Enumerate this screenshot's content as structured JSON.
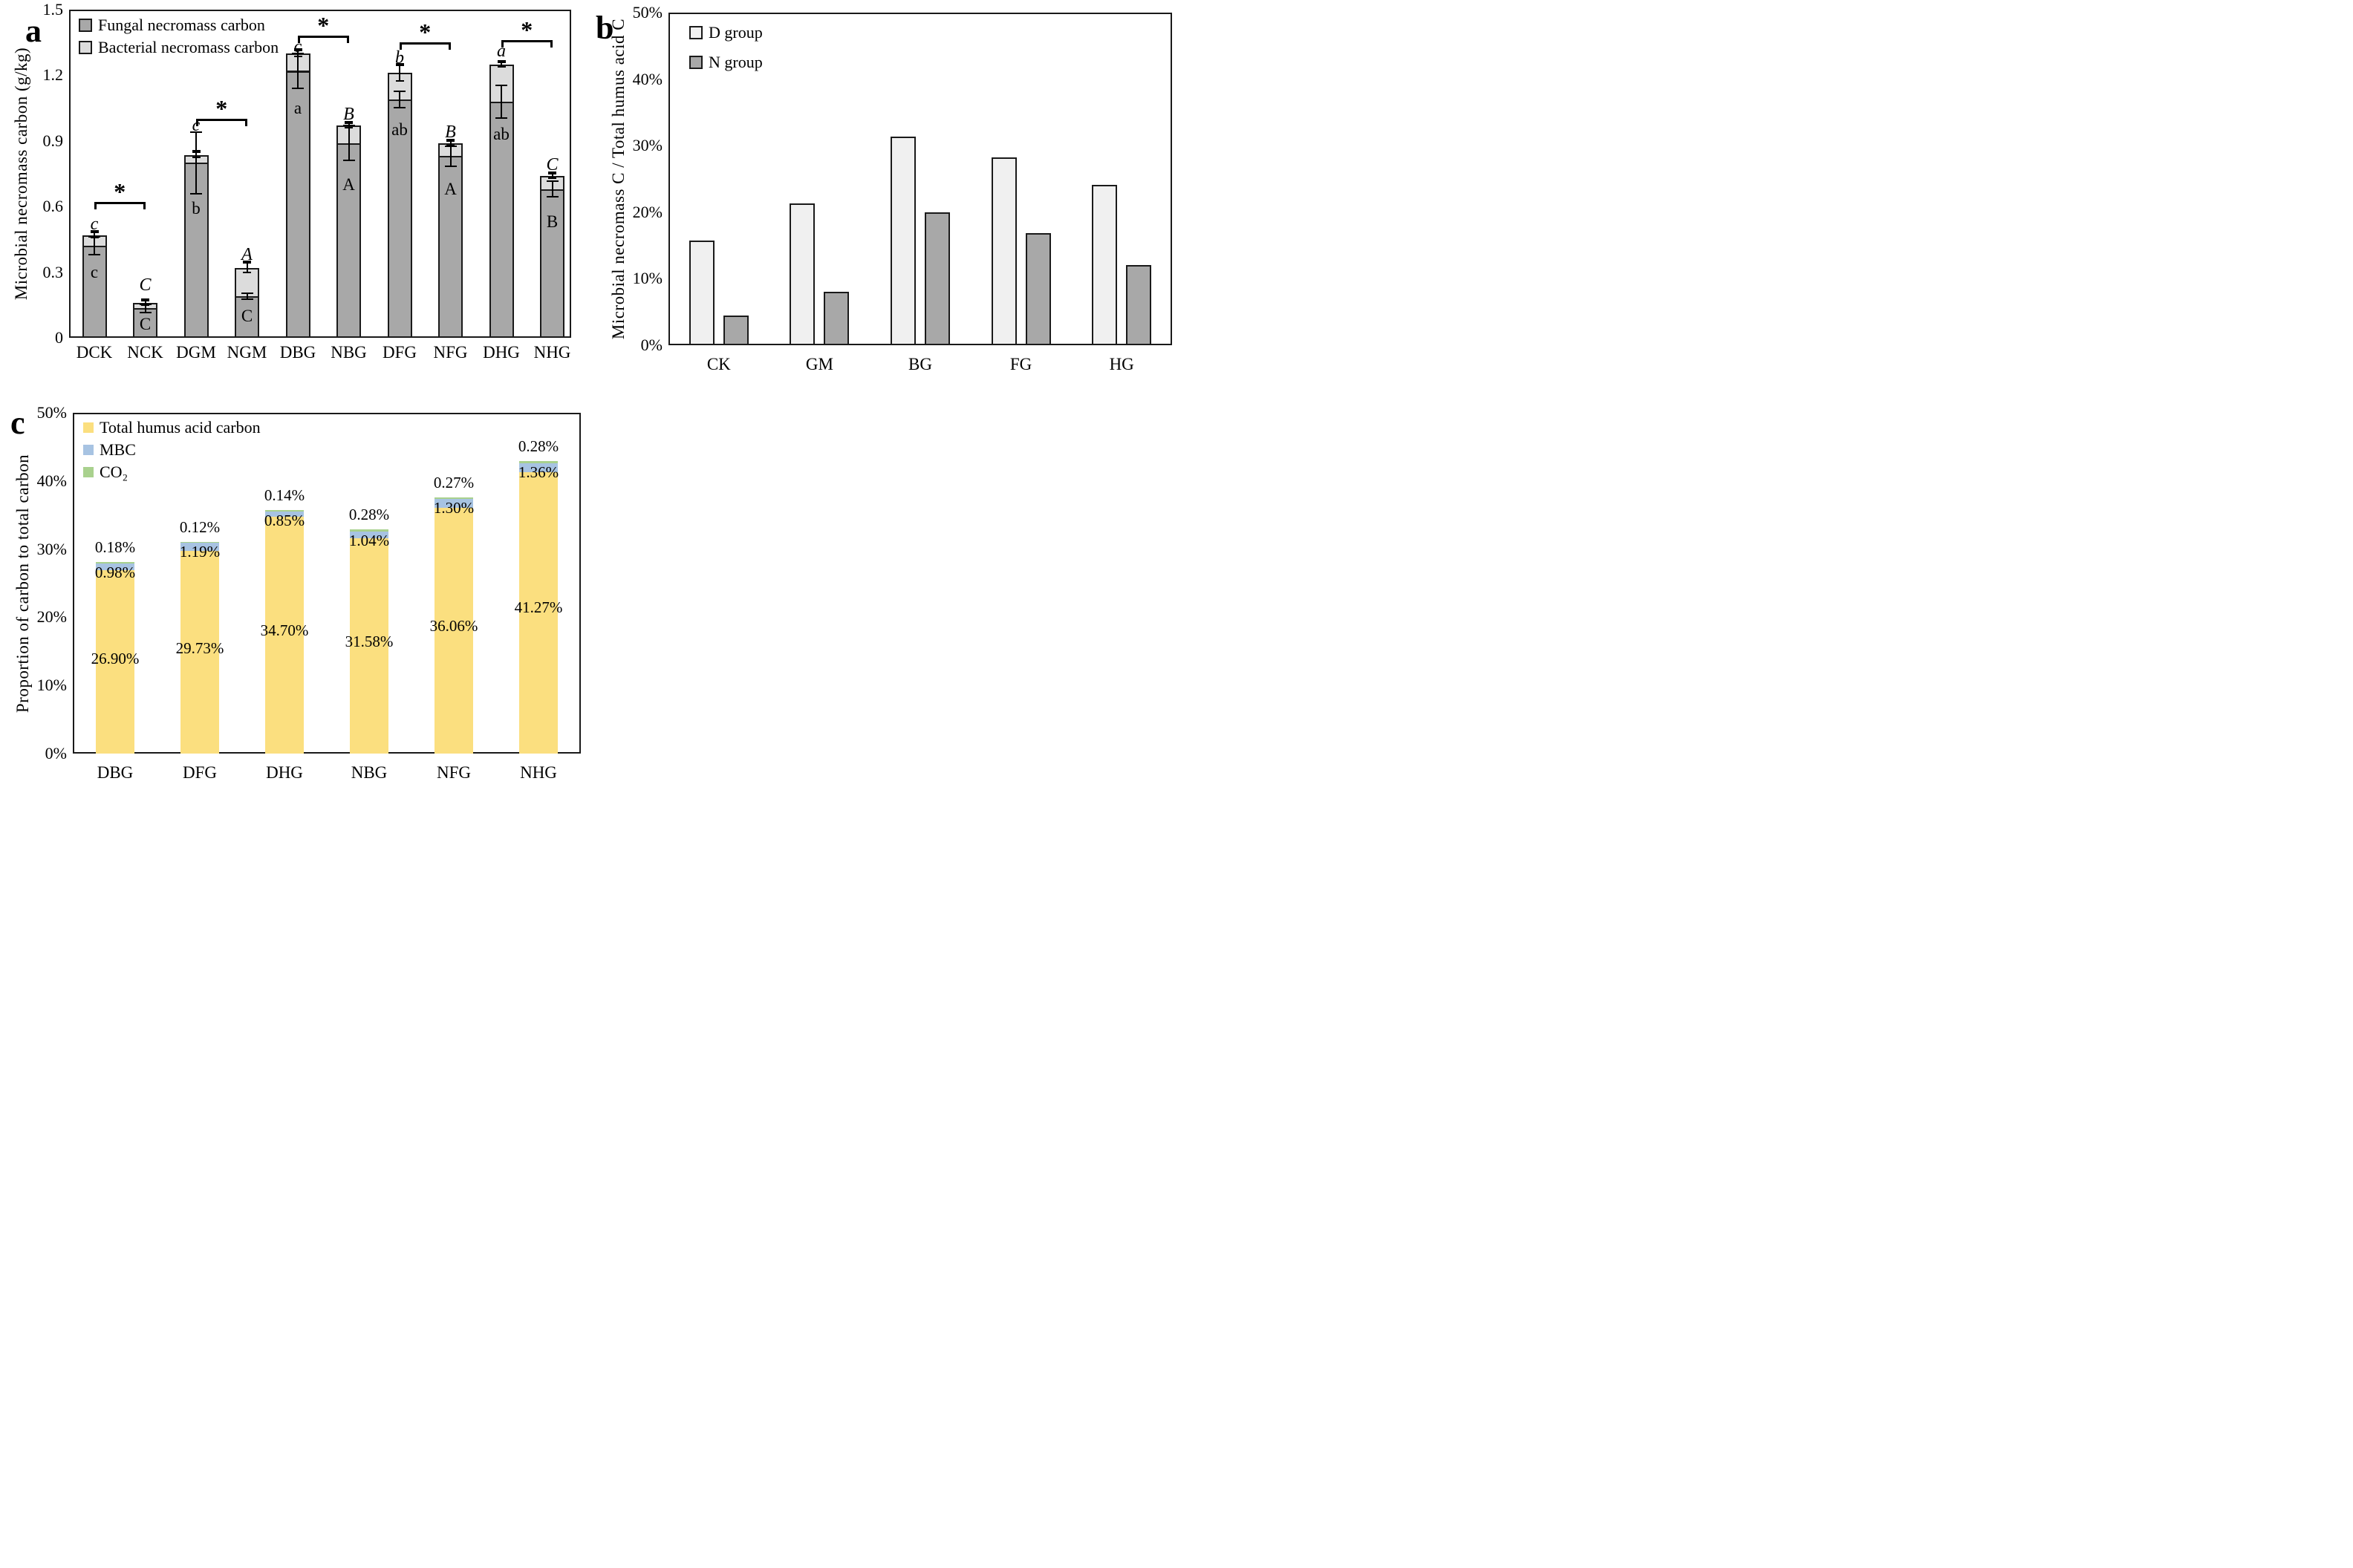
{
  "colors": {
    "fungal": "#a8a8a8",
    "bacterial": "#dcdcdc",
    "d_group": "#f0f0f0",
    "n_group": "#a8a8a8",
    "humus": "#fbdf7f",
    "mbc": "#a7c3e2",
    "co2": "#a9d18e",
    "axis": "#1a1a1a"
  },
  "panels": {
    "a": {
      "letter": "a",
      "y_axis_label": "Microbial necromass carbon (g/kg)",
      "y_ticks": [
        "1.5",
        "1.2",
        "0.9",
        "0.6",
        "0.3",
        "0"
      ],
      "legend": [
        {
          "label": "Fungal necromass carbon",
          "color": "#a8a8a8"
        },
        {
          "label": "Bacterial necromass carbon",
          "color": "#dcdcdc"
        }
      ],
      "categories": [
        "DCK",
        "NCK",
        "DGM",
        "NGM",
        "DBG",
        "NBG",
        "DFG",
        "NFG",
        "DHG",
        "NHG"
      ],
      "bars": [
        {
          "cat": "DCK",
          "fungal": 0.42,
          "bacterial": 0.05,
          "fungal_err": 0.04,
          "total_err": 0.012,
          "top_letter": "c",
          "inner_letter": "c",
          "inner_y": 0.3,
          "letter_y": 0.52
        },
        {
          "cat": "NCK",
          "fungal": 0.135,
          "bacterial": 0.025,
          "fungal_err": 0.018,
          "total_err": 0.01,
          "top_letter": "C",
          "inner_letter": "C",
          "inner_y": 0.06,
          "letter_y": 0.24
        },
        {
          "cat": "DGM",
          "fungal": 0.8,
          "bacterial": 0.035,
          "fungal_err": 0.14,
          "total_err": 0.012,
          "top_letter": "c",
          "inner_letter": "b",
          "inner_y": 0.59,
          "letter_y": 0.97
        },
        {
          "cat": "NGM",
          "fungal": 0.19,
          "bacterial": 0.13,
          "fungal_err": 0.012,
          "total_err": 0.022,
          "top_letter": "A",
          "inner_letter": "C",
          "inner_y": 0.1,
          "letter_y": 0.38
        },
        {
          "cat": "DBG",
          "fungal": 1.22,
          "bacterial": 0.08,
          "fungal_err": 0.08,
          "total_err": 0.015,
          "top_letter": "c",
          "inner_letter": "a",
          "inner_y": 1.05,
          "letter_y": 1.33
        },
        {
          "cat": "NBG",
          "fungal": 0.89,
          "bacterial": 0.08,
          "fungal_err": 0.08,
          "total_err": 0.01,
          "top_letter": "B",
          "inner_letter": "A",
          "inner_y": 0.7,
          "letter_y": 1.02
        },
        {
          "cat": "DFG",
          "fungal": 1.09,
          "bacterial": 0.12,
          "fungal_err": 0.038,
          "total_err": 0.035,
          "top_letter": "b",
          "inner_letter": "ab",
          "inner_y": 0.95,
          "letter_y": 1.28
        },
        {
          "cat": "NFG",
          "fungal": 0.83,
          "bacterial": 0.06,
          "fungal_err": 0.045,
          "total_err": 0.01,
          "top_letter": "B",
          "inner_letter": "A",
          "inner_y": 0.68,
          "letter_y": 0.94
        },
        {
          "cat": "DHG",
          "fungal": 1.08,
          "bacterial": 0.17,
          "fungal_err": 0.075,
          "total_err": 0.01,
          "top_letter": "a",
          "inner_letter": "ab",
          "inner_y": 0.93,
          "letter_y": 1.31
        },
        {
          "cat": "NHG",
          "fungal": 0.68,
          "bacterial": 0.06,
          "fungal_err": 0.035,
          "total_err": 0.01,
          "top_letter": "C",
          "inner_letter": "B",
          "inner_y": 0.53,
          "letter_y": 0.79
        }
      ],
      "brackets": [
        {
          "from": 0,
          "to": 1,
          "y": 0.62,
          "symbol": "*"
        },
        {
          "from": 2,
          "to": 3,
          "y": 1.0,
          "symbol": "*"
        },
        {
          "from": 4,
          "to": 5,
          "y": 1.38,
          "symbol": "*"
        },
        {
          "from": 6,
          "to": 7,
          "y": 1.35,
          "symbol": "*"
        },
        {
          "from": 8,
          "to": 9,
          "y": 1.36,
          "symbol": "*"
        }
      ]
    },
    "b": {
      "letter": "b",
      "y_axis_label": "Microbial necromass C / Total humus acid C",
      "y_ticks": [
        "50%",
        "40%",
        "30%",
        "20%",
        "10%",
        "0%"
      ],
      "legend": [
        {
          "label": "D group",
          "color": "#f0f0f0"
        },
        {
          "label": "N group",
          "color": "#a8a8a8"
        }
      ],
      "categories": [
        "CK",
        "GM",
        "BG",
        "FG",
        "HG"
      ],
      "d_values": [
        15.7,
        21.3,
        31.4,
        28.2,
        24.1
      ],
      "n_values": [
        4.5,
        8.0,
        20.0,
        16.8,
        12.1
      ]
    },
    "c": {
      "letter": "c",
      "y_axis_label": "Proportion of carbon to total carbon",
      "y_ticks": [
        "50%",
        "40%",
        "30%",
        "20%",
        "10%",
        "0%"
      ],
      "legend": [
        {
          "label": "Total humus acid carbon",
          "color": "#fbdf7f"
        },
        {
          "label": "MBC",
          "color": "#a7c3e2"
        },
        {
          "label": "CO₂",
          "color": "#a9d18e"
        }
      ],
      "categories": [
        "DBG",
        "DFG",
        "DHG",
        "NBG",
        "NFG",
        "NHG"
      ],
      "humus_values": [
        26.9,
        29.73,
        34.7,
        31.58,
        36.06,
        41.27
      ],
      "mbc_values": [
        0.98,
        1.19,
        0.85,
        1.04,
        1.3,
        1.36
      ],
      "co2_values": [
        0.18,
        0.12,
        0.14,
        0.28,
        0.27,
        0.28
      ],
      "humus_labels": [
        "26.90%",
        "29.73%",
        "34.70%",
        "31.58%",
        "36.06%",
        "41.27%"
      ],
      "mbc_labels": [
        "0.98%",
        "1.19%",
        "0.85%",
        "1.04%",
        "1.30%",
        "1.36%"
      ],
      "co2_labels": [
        "0.18%",
        "0.12%",
        "0.14%",
        "0.28%",
        "0.27%",
        "0.28%"
      ]
    }
  },
  "chart_data": [
    {
      "type": "bar",
      "subtype": "stacked-with-error-bars",
      "panel": "a",
      "title": "",
      "xlabel": "",
      "ylabel": "Microbial necromass carbon (g/kg)",
      "ylim": [
        0,
        1.5
      ],
      "y_tick_step": 0.3,
      "grid": false,
      "legend_position": "top-left-inside",
      "categories": [
        "DCK",
        "NCK",
        "DGM",
        "NGM",
        "DBG",
        "NBG",
        "DFG",
        "NFG",
        "DHG",
        "NHG"
      ],
      "series": [
        {
          "name": "Fungal necromass carbon",
          "values": [
            0.42,
            0.135,
            0.8,
            0.19,
            1.22,
            0.89,
            1.09,
            0.83,
            1.08,
            0.68
          ]
        },
        {
          "name": "Bacterial necromass carbon",
          "values": [
            0.05,
            0.025,
            0.035,
            0.13,
            0.08,
            0.08,
            0.12,
            0.06,
            0.17,
            0.06
          ]
        }
      ],
      "fungal_error": [
        0.04,
        0.018,
        0.14,
        0.012,
        0.08,
        0.08,
        0.038,
        0.045,
        0.075,
        0.035
      ],
      "total_error": [
        0.012,
        0.01,
        0.012,
        0.022,
        0.015,
        0.01,
        0.035,
        0.01,
        0.01,
        0.01
      ],
      "significance_letters_above": [
        "c",
        "C",
        "c",
        "A",
        "c",
        "B",
        "b",
        "B",
        "a",
        "C"
      ],
      "significance_letters_inside": [
        "c",
        "C",
        "b",
        "C",
        "a",
        "A",
        "ab",
        "A",
        "ab",
        "B"
      ],
      "significance_brackets": [
        {
          "pair": [
            "DCK",
            "NCK"
          ],
          "symbol": "*"
        },
        {
          "pair": [
            "DGM",
            "NGM"
          ],
          "symbol": "*"
        },
        {
          "pair": [
            "DBG",
            "NBG"
          ],
          "symbol": "*"
        },
        {
          "pair": [
            "DFG",
            "NFG"
          ],
          "symbol": "*"
        },
        {
          "pair": [
            "DHG",
            "NHG"
          ],
          "symbol": "*"
        }
      ]
    },
    {
      "type": "bar",
      "subtype": "grouped",
      "panel": "b",
      "title": "",
      "xlabel": "",
      "ylabel": "Microbial necromass C / Total humus acid C",
      "ylim": [
        0,
        50
      ],
      "y_tick_step": 10,
      "unit": "%",
      "grid": false,
      "legend_position": "top-left-inside",
      "categories": [
        "CK",
        "GM",
        "BG",
        "FG",
        "HG"
      ],
      "series": [
        {
          "name": "D group",
          "values": [
            15.7,
            21.3,
            31.4,
            28.2,
            24.1
          ]
        },
        {
          "name": "N group",
          "values": [
            4.5,
            8.0,
            20.0,
            16.8,
            12.1
          ]
        }
      ]
    },
    {
      "type": "bar",
      "subtype": "stacked",
      "panel": "c",
      "title": "",
      "xlabel": "",
      "ylabel": "Proportion of carbon to total carbon",
      "ylim": [
        0,
        50
      ],
      "y_tick_step": 10,
      "unit": "%",
      "grid": false,
      "legend_position": "top-left-inside",
      "categories": [
        "DBG",
        "DFG",
        "DHG",
        "NBG",
        "NFG",
        "NHG"
      ],
      "series": [
        {
          "name": "Total humus acid carbon",
          "values": [
            26.9,
            29.73,
            34.7,
            31.58,
            36.06,
            41.27
          ]
        },
        {
          "name": "MBC",
          "values": [
            0.98,
            1.19,
            0.85,
            1.04,
            1.3,
            1.36
          ]
        },
        {
          "name": "CO₂",
          "values": [
            0.18,
            0.12,
            0.14,
            0.28,
            0.27,
            0.28
          ]
        }
      ],
      "data_labels": {
        "Total humus acid carbon": [
          "26.90%",
          "29.73%",
          "34.70%",
          "31.58%",
          "36.06%",
          "41.27%"
        ],
        "MBC": [
          "0.98%",
          "1.19%",
          "0.85%",
          "1.04%",
          "1.30%",
          "1.36%"
        ],
        "CO₂": [
          "0.18%",
          "0.12%",
          "0.14%",
          "0.28%",
          "0.27%",
          "0.28%"
        ]
      }
    }
  ]
}
